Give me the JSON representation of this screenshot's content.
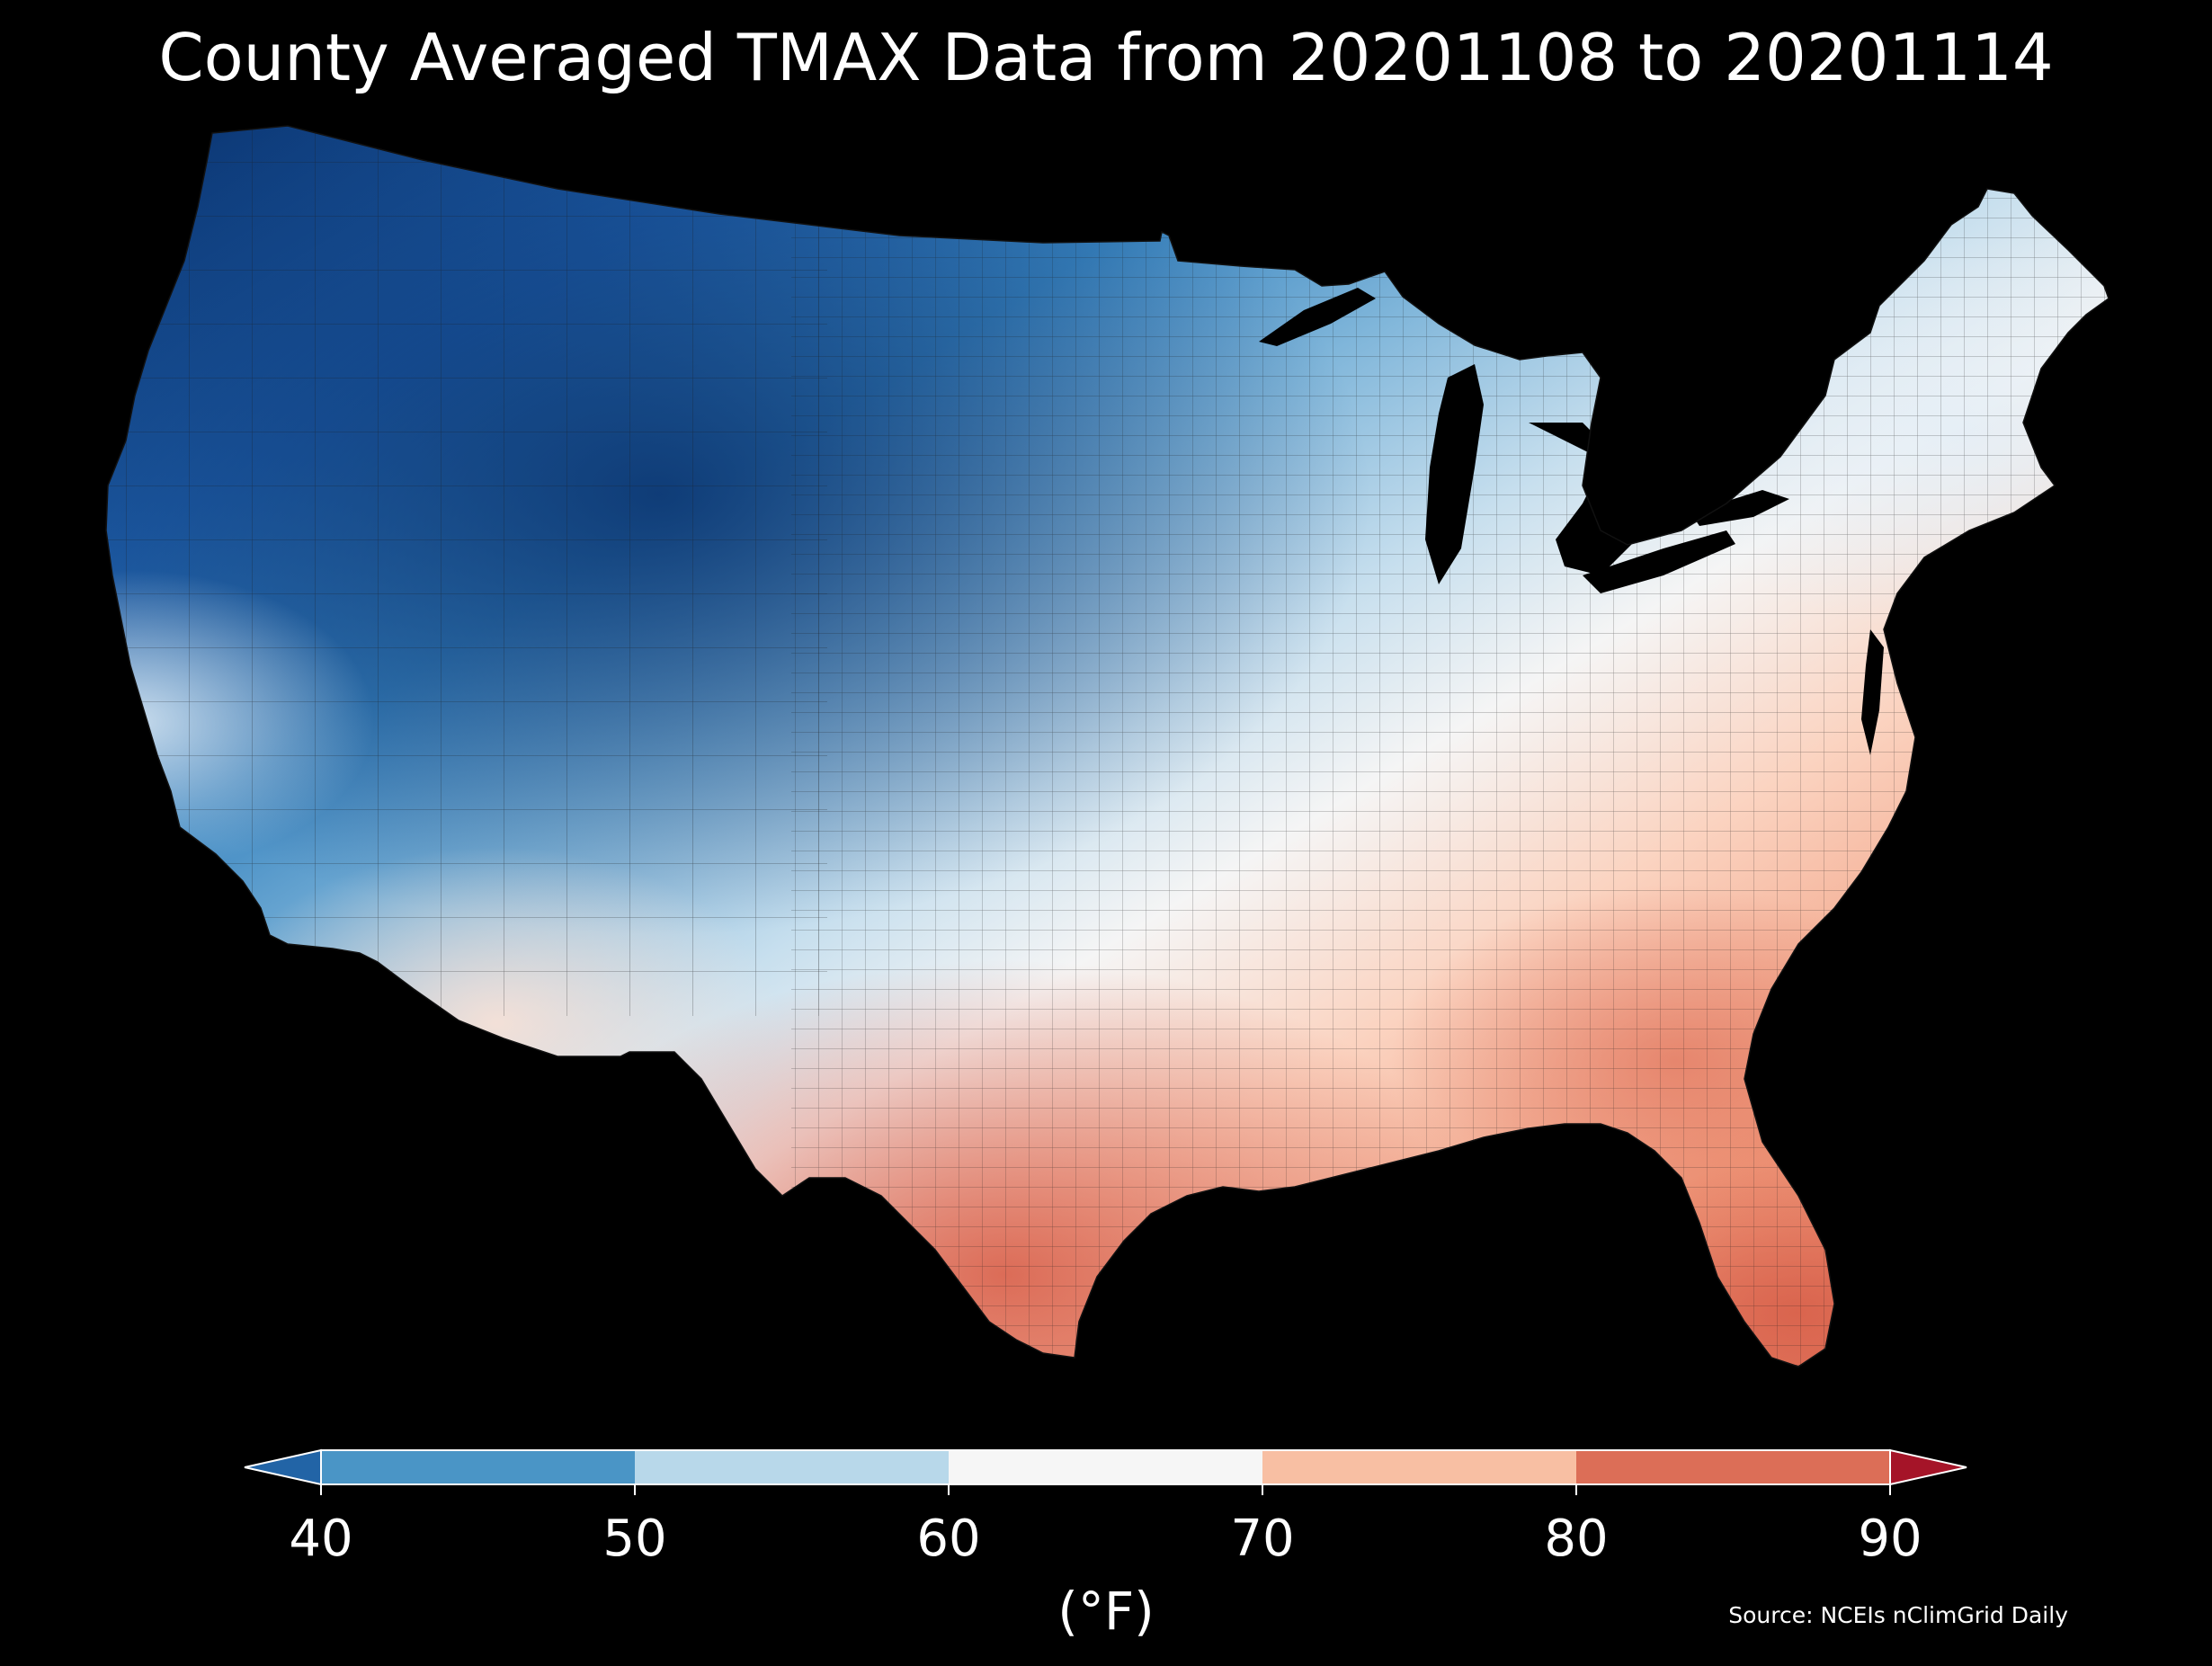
{
  "title": "County Averaged TMAX Data from 20201108 to 20201114",
  "source": "Source: NCEIs nClimGrid Daily",
  "colorbar": {
    "label": "(°F)",
    "ticks": [
      "40",
      "50",
      "60",
      "70",
      "80",
      "90"
    ],
    "bins": [
      {
        "from": 40,
        "to": 50,
        "color": "#4a95c6"
      },
      {
        "from": 50,
        "to": 60,
        "color": "#b8d8ea"
      },
      {
        "from": 60,
        "to": 70,
        "color": "#f6f6f6"
      },
      {
        "from": 70,
        "to": 80,
        "color": "#f8bfa3"
      },
      {
        "from": 80,
        "to": 90,
        "color": "#dc6e57"
      }
    ],
    "under_color": "#2264a6",
    "over_color": "#a51428",
    "extend": "both"
  },
  "map": {
    "variable": "TMAX",
    "units": "°F",
    "background": "#000000",
    "boundary_color": "#1a1a1a",
    "palette": [
      "#08306b",
      "#1f5ea8",
      "#3a85c0",
      "#80b6da",
      "#c7dfee",
      "#f5f5f5",
      "#fbd3c0",
      "#f09a7c",
      "#d9604b"
    ]
  }
}
